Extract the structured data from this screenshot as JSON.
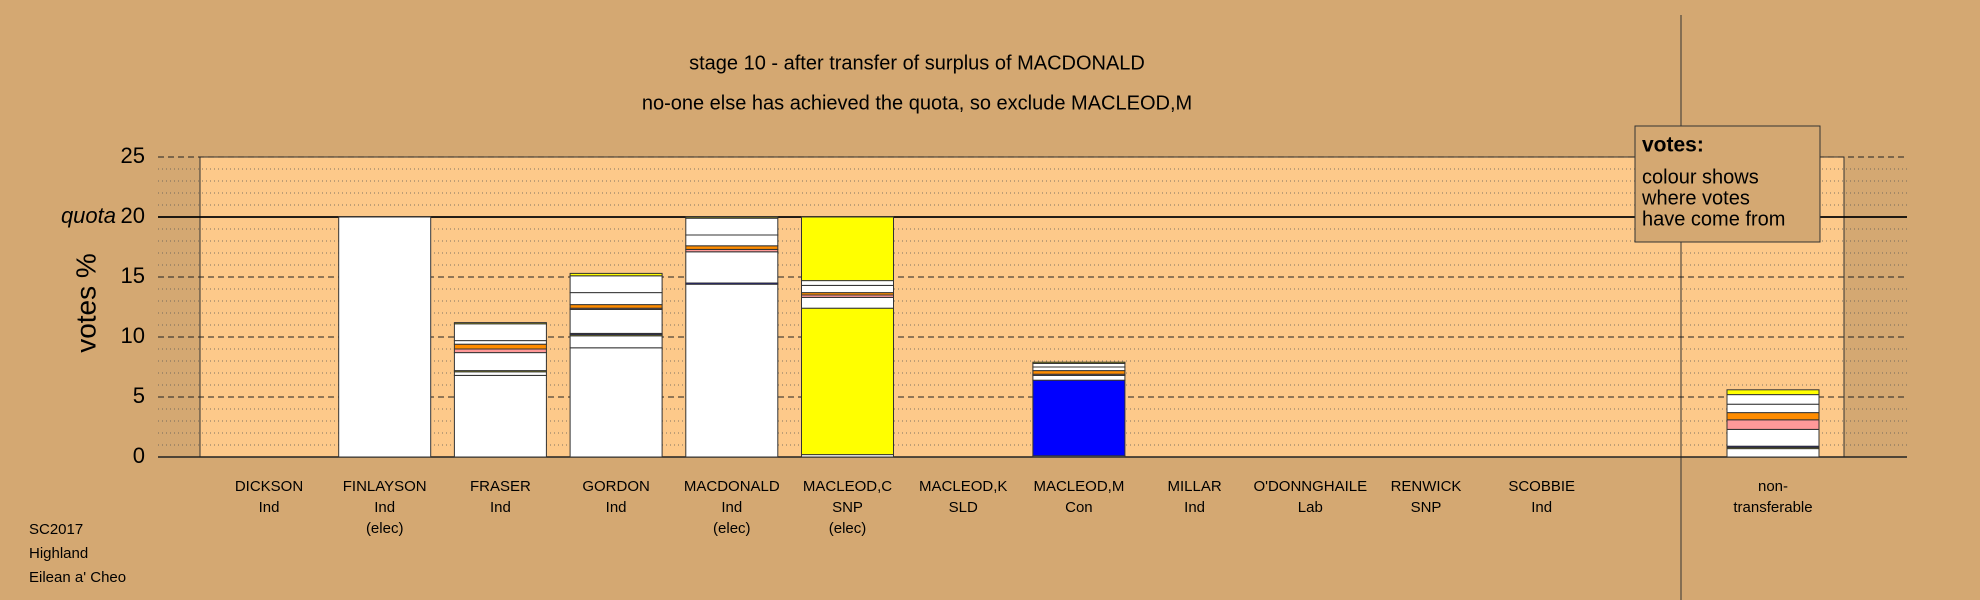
{
  "chart_data": {
    "type": "stacked-bar",
    "title": "stage 10 - after transfer of surplus of MACDONALD",
    "subtitle": "no-one else has achieved the quota, so exclude MACLEOD,M",
    "ylabel": "votes %",
    "quota": 20,
    "quota_label": "quota",
    "categories": [
      [
        "DICKSON",
        "Ind"
      ],
      [
        "FINLAYSON",
        "Ind",
        "(elec)"
      ],
      [
        "FRASER",
        "Ind"
      ],
      [
        "GORDON",
        "Ind"
      ],
      [
        "MACDONALD",
        "Ind",
        "(elec)"
      ],
      [
        "MACLEOD,C",
        "SNP",
        "(elec)"
      ],
      [
        "MACLEOD,K",
        "SLD"
      ],
      [
        "MACLEOD,M",
        "Con"
      ],
      [
        "MILLAR",
        "Ind"
      ],
      [
        "O'DONNGHAILE",
        "Lab"
      ],
      [
        "RENWICK",
        "SNP"
      ],
      [
        "SCOBBIE",
        "Ind"
      ],
      [
        "non-",
        "transferable"
      ]
    ],
    "series": [
      {
        "color": "#ffffff",
        "values": [
          0,
          20,
          0,
          0,
          0,
          0,
          0,
          0,
          0,
          0,
          0,
          0,
          0
        ]
      },
      {
        "color": "#ffffff",
        "values": [
          0,
          0,
          6.8,
          0,
          0,
          0,
          0,
          0,
          0,
          0,
          0,
          0,
          0
        ]
      },
      {
        "color": "#ffffff",
        "values": [
          0,
          0,
          0,
          9.1,
          0,
          0,
          0,
          0,
          0,
          0,
          0,
          0,
          0
        ]
      },
      {
        "color": "#ffffff",
        "values": [
          0,
          0,
          0.3,
          1.0,
          14.4,
          0.2,
          0,
          0.1,
          0,
          0,
          0,
          0,
          0.7
        ]
      },
      {
        "color": "#ffff00",
        "values": [
          0,
          0,
          0.1,
          0.1,
          0,
          12.2,
          0,
          0,
          0,
          0,
          0,
          0,
          0.1
        ]
      },
      {
        "color": "#0000ff",
        "values": [
          0,
          0,
          0,
          0.1,
          0.1,
          0,
          0,
          6.3,
          0,
          0,
          0,
          0,
          0.1
        ]
      },
      {
        "color": "#ffffff",
        "values": [
          0,
          0,
          1.5,
          2.0,
          2.6,
          0.9,
          0,
          0.4,
          0,
          0,
          0,
          0,
          1.4
        ]
      },
      {
        "color": "#ff9999",
        "values": [
          0,
          0,
          0.3,
          0.1,
          0.2,
          0.2,
          0,
          0.1,
          0,
          0,
          0,
          0,
          0.8
        ]
      },
      {
        "color": "#ff8c00",
        "values": [
          0,
          0,
          0.4,
          0.3,
          0.3,
          0.2,
          0,
          0.3,
          0,
          0,
          0,
          0,
          0.6
        ]
      },
      {
        "color": "#ffffff",
        "values": [
          0,
          0,
          0.3,
          1.0,
          0.9,
          0.6,
          0,
          0.3,
          0,
          0,
          0,
          0,
          0.7
        ]
      },
      {
        "color": "#ffffff",
        "values": [
          0,
          0,
          1.4,
          1.4,
          1.4,
          0.4,
          0,
          0.3,
          0,
          0,
          0,
          0,
          0.8
        ]
      },
      {
        "color": "#ffff00",
        "values": [
          0,
          0,
          0.1,
          0.2,
          0.1,
          5.3,
          0,
          0.1,
          0,
          0,
          0,
          0,
          0.4
        ]
      }
    ],
    "ylim": [
      0,
      25
    ],
    "yticks": [
      0,
      5,
      10,
      15,
      20,
      25
    ],
    "minor_yticks": [
      1,
      2,
      3,
      4,
      6,
      7,
      8,
      9,
      11,
      12,
      13,
      14,
      16,
      17,
      18,
      19,
      21,
      22,
      23,
      24
    ],
    "grid": true,
    "note": {
      "title": "votes:",
      "lines": [
        "colour shows",
        "where votes",
        "have come from"
      ]
    },
    "footer": [
      "SC2017",
      "Highland",
      "Eilean a' Cheo"
    ]
  }
}
